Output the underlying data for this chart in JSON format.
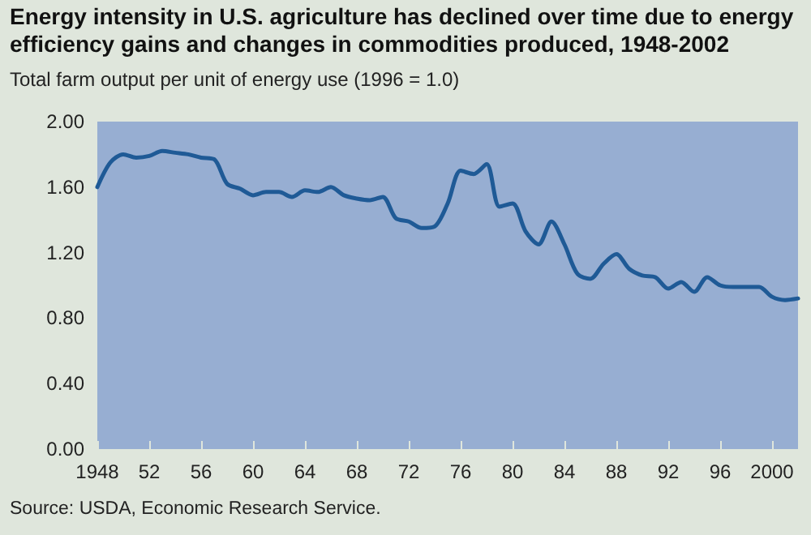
{
  "chart_data": {
    "type": "line",
    "title": "Energy intensity in U.S. agriculture has declined over time due to energy efficiency gains and changes in commodities produced, 1948-2002",
    "ylabel": "Total farm output per unit of energy use (1996 = 1.0)",
    "annotations": [
      "Source: USDA, Economic Research Service."
    ],
    "x": [
      1948,
      1949,
      1950,
      1951,
      1952,
      1953,
      1954,
      1955,
      1956,
      1957,
      1958,
      1959,
      1960,
      1961,
      1962,
      1963,
      1964,
      1965,
      1966,
      1967,
      1968,
      1969,
      1970,
      1971,
      1972,
      1973,
      1974,
      1975,
      1976,
      1977,
      1978,
      1979,
      1980,
      1981,
      1982,
      1983,
      1984,
      1985,
      1986,
      1987,
      1988,
      1989,
      1990,
      1991,
      1992,
      1993,
      1994,
      1995,
      1996,
      1997,
      1998,
      1999,
      2000,
      2001,
      2002
    ],
    "series": [
      {
        "color": "#1f5a96",
        "values": [
          1.6,
          1.75,
          1.8,
          1.78,
          1.79,
          1.82,
          1.81,
          1.8,
          1.78,
          1.77,
          1.62,
          1.59,
          1.55,
          1.57,
          1.57,
          1.54,
          1.58,
          1.57,
          1.6,
          1.55,
          1.53,
          1.52,
          1.54,
          1.41,
          1.39,
          1.35,
          1.36,
          1.5,
          1.7,
          1.68,
          1.74,
          1.48,
          1.5,
          1.33,
          1.25,
          1.39,
          1.25,
          1.07,
          1.04,
          1.13,
          1.19,
          1.1,
          1.06,
          1.05,
          0.98,
          1.02,
          0.96,
          1.05,
          1.0,
          0.99,
          0.99,
          0.99,
          0.93,
          0.91,
          0.92
        ]
      }
    ],
    "xlim": [
      1948,
      2002
    ],
    "xticks": [
      {
        "value": 1948,
        "label": "1948"
      },
      {
        "value": 1952,
        "label": "52"
      },
      {
        "value": 1956,
        "label": "56"
      },
      {
        "value": 1960,
        "label": "60"
      },
      {
        "value": 1964,
        "label": "64"
      },
      {
        "value": 1968,
        "label": "68"
      },
      {
        "value": 1972,
        "label": "72"
      },
      {
        "value": 1976,
        "label": "76"
      },
      {
        "value": 1980,
        "label": "80"
      },
      {
        "value": 1984,
        "label": "84"
      },
      {
        "value": 1988,
        "label": "88"
      },
      {
        "value": 1992,
        "label": "92"
      },
      {
        "value": 1996,
        "label": "96"
      },
      {
        "value": 2000,
        "label": "2000"
      }
    ],
    "ylim": [
      0,
      2
    ],
    "yticks": [
      {
        "value": 0,
        "label": "0.00"
      },
      {
        "value": 0.4,
        "label": "0.40"
      },
      {
        "value": 0.8,
        "label": "0.80"
      },
      {
        "value": 1.2,
        "label": "1.20"
      },
      {
        "value": 1.6,
        "label": "1.60"
      },
      {
        "value": 2,
        "label": "2.00"
      }
    ],
    "grid": false,
    "marker": "none",
    "line_style": "solid"
  }
}
